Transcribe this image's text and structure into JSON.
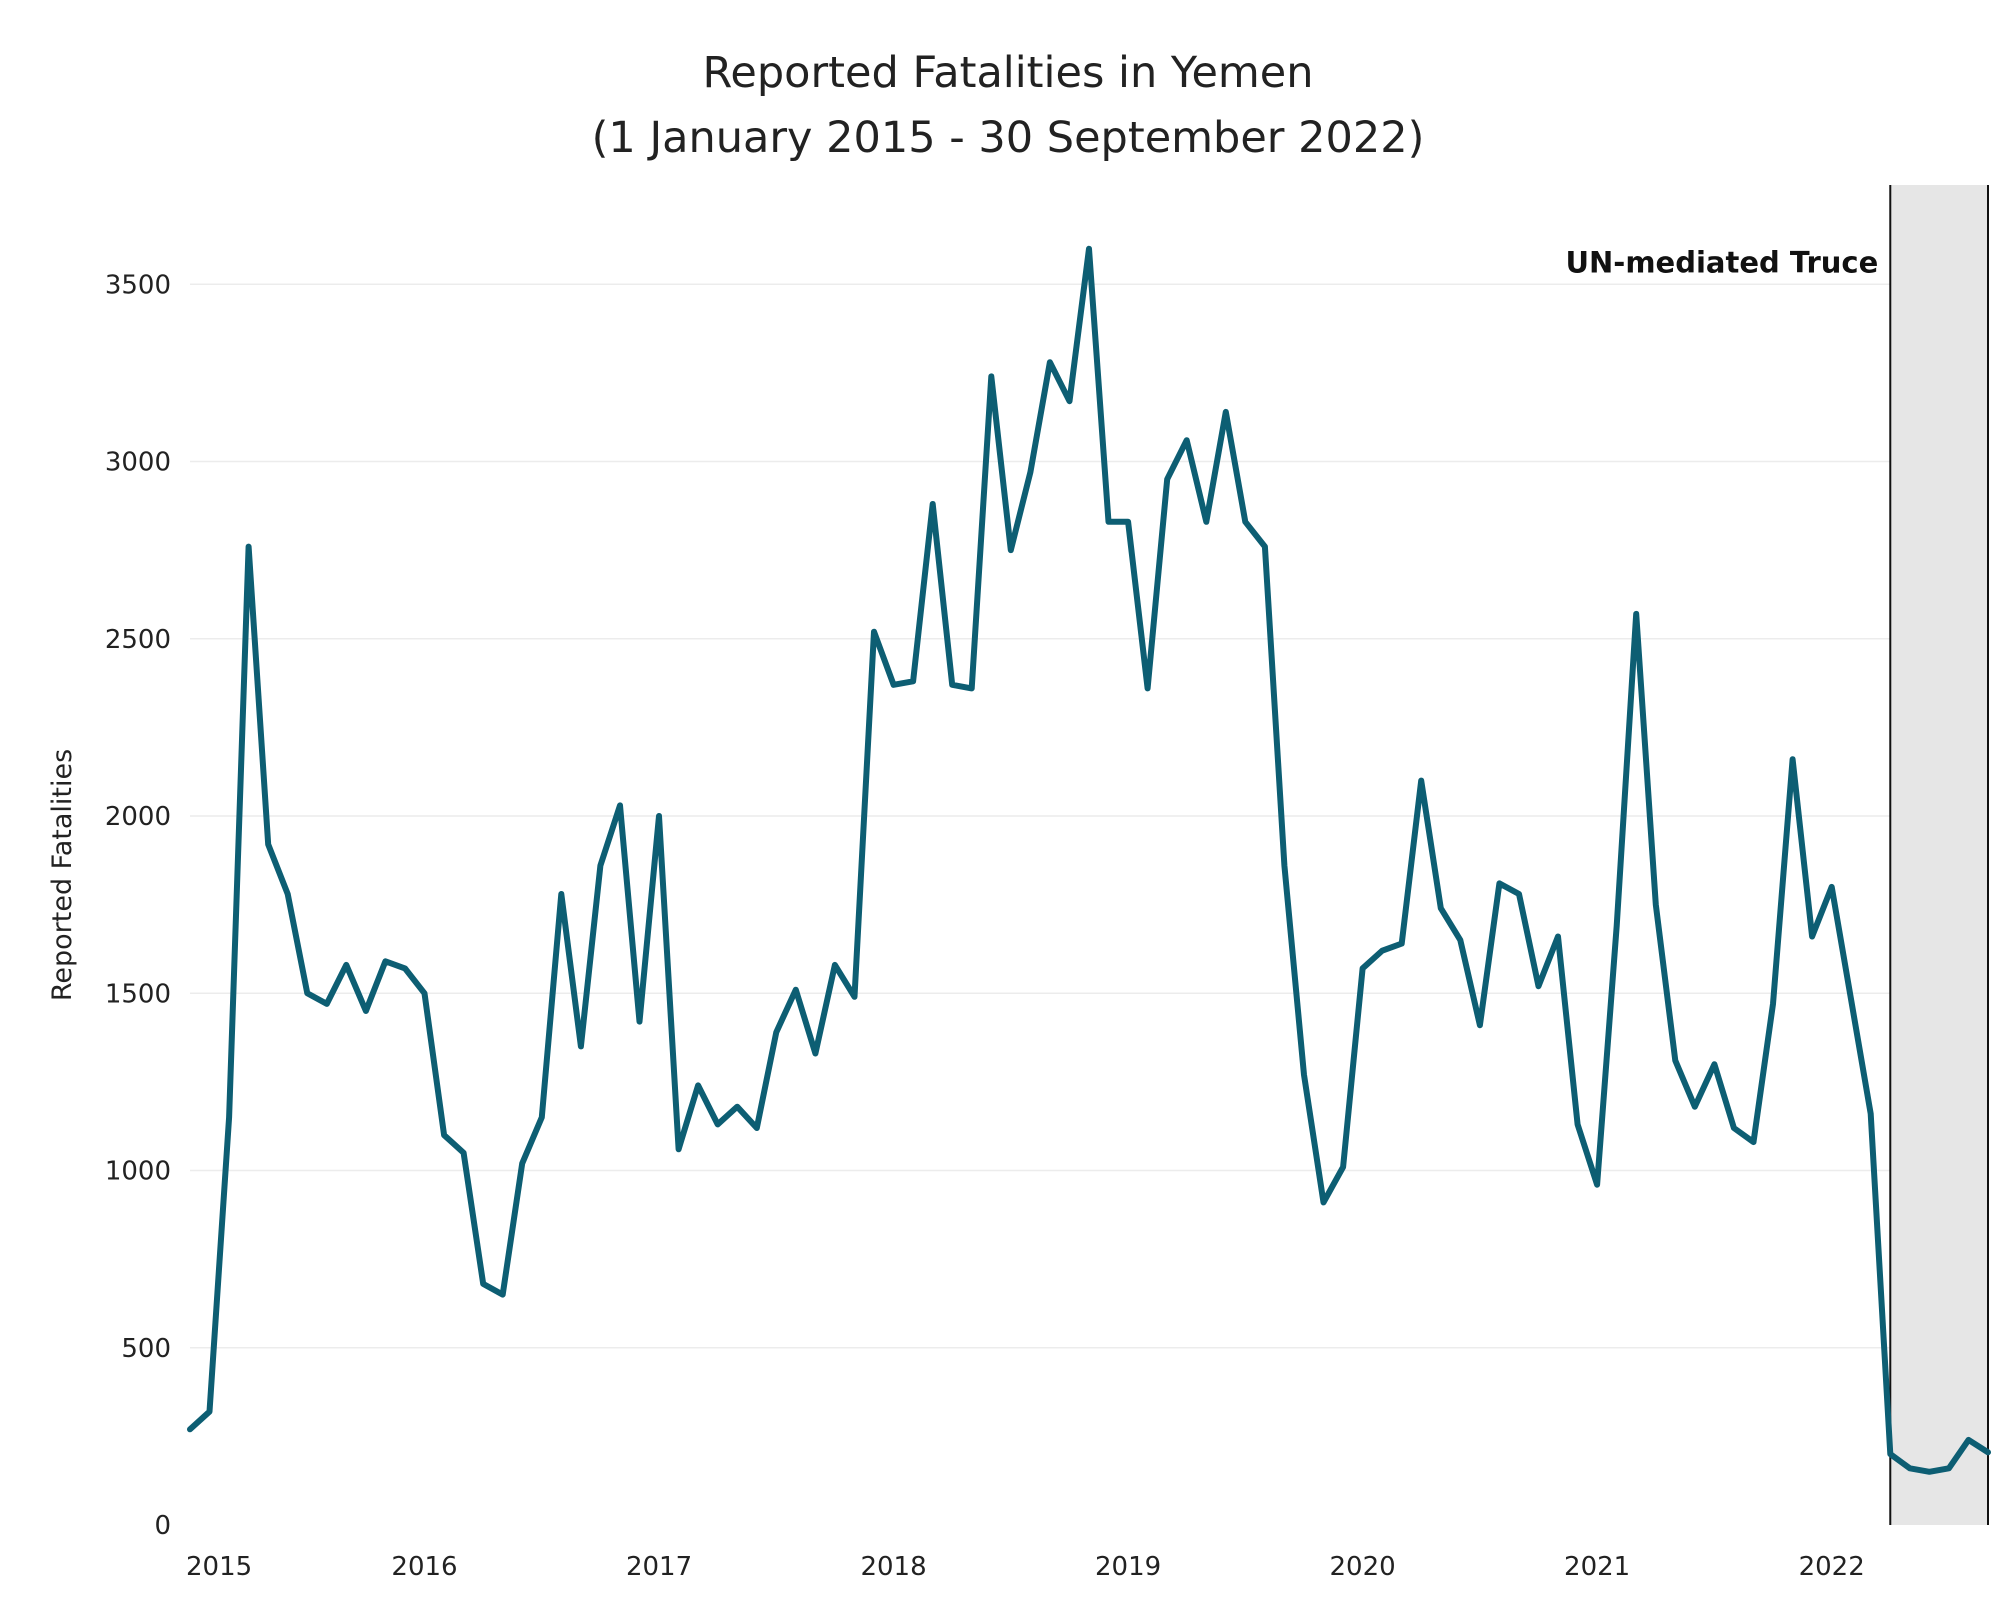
{
  "chart_data": {
    "type": "line",
    "title": "Reported Fatalities in Yemen",
    "subtitle": "(1 January 2015 - 30 September 2022)",
    "ylabel": "Reported Fatalities",
    "xlabel": "",
    "ylim": [
      0,
      3780
    ],
    "xlim": [
      "2015-01",
      "2022-09"
    ],
    "x_tick_labels": [
      "2015",
      "2016",
      "2017",
      "2018",
      "2019",
      "2020",
      "2021",
      "2022"
    ],
    "y_ticks": [
      0,
      500,
      1000,
      1500,
      2000,
      2500,
      3000,
      3500
    ],
    "grid": "horizontal",
    "line_color": "#0d5e73",
    "shade_color": "#e6e6e6",
    "annotation": {
      "label": "UN-mediated Truce",
      "start": "2022-04",
      "end": "2022-09"
    },
    "series": [
      {
        "values": [
          [
            "2015-01",
            270
          ],
          [
            "2015-02",
            320
          ],
          [
            "2015-03",
            1150
          ],
          [
            "2015-04",
            2760
          ],
          [
            "2015-05",
            1920
          ],
          [
            "2015-06",
            1780
          ],
          [
            "2015-07",
            1500
          ],
          [
            "2015-08",
            1470
          ],
          [
            "2015-09",
            1580
          ],
          [
            "2015-10",
            1450
          ],
          [
            "2015-11",
            1590
          ],
          [
            "2015-12",
            1570
          ],
          [
            "2016-01",
            1500
          ],
          [
            "2016-02",
            1100
          ],
          [
            "2016-03",
            1050
          ],
          [
            "2016-04",
            680
          ],
          [
            "2016-05",
            650
          ],
          [
            "2016-06",
            1020
          ],
          [
            "2016-07",
            1150
          ],
          [
            "2016-08",
            1780
          ],
          [
            "2016-09",
            1350
          ],
          [
            "2016-10",
            1860
          ],
          [
            "2016-11",
            2030
          ],
          [
            "2016-12",
            1420
          ],
          [
            "2017-01",
            2000
          ],
          [
            "2017-02",
            1060
          ],
          [
            "2017-03",
            1240
          ],
          [
            "2017-04",
            1130
          ],
          [
            "2017-05",
            1180
          ],
          [
            "2017-06",
            1120
          ],
          [
            "2017-07",
            1390
          ],
          [
            "2017-08",
            1510
          ],
          [
            "2017-09",
            1330
          ],
          [
            "2017-10",
            1580
          ],
          [
            "2017-11",
            1490
          ],
          [
            "2017-12",
            2520
          ],
          [
            "2018-01",
            2370
          ],
          [
            "2018-02",
            2380
          ],
          [
            "2018-03",
            2880
          ],
          [
            "2018-04",
            2370
          ],
          [
            "2018-05",
            2360
          ],
          [
            "2018-06",
            3240
          ],
          [
            "2018-07",
            2750
          ],
          [
            "2018-08",
            2970
          ],
          [
            "2018-09",
            3280
          ],
          [
            "2018-10",
            3170
          ],
          [
            "2018-11",
            3600
          ],
          [
            "2018-12",
            2830
          ],
          [
            "2019-01",
            2830
          ],
          [
            "2019-02",
            2360
          ],
          [
            "2019-03",
            2950
          ],
          [
            "2019-04",
            3060
          ],
          [
            "2019-05",
            2830
          ],
          [
            "2019-06",
            3140
          ],
          [
            "2019-07",
            2830
          ],
          [
            "2019-08",
            2760
          ],
          [
            "2019-09",
            1860
          ],
          [
            "2019-10",
            1270
          ],
          [
            "2019-11",
            910
          ],
          [
            "2019-12",
            1010
          ],
          [
            "2020-01",
            1570
          ],
          [
            "2020-02",
            1620
          ],
          [
            "2020-03",
            1640
          ],
          [
            "2020-04",
            2100
          ],
          [
            "2020-05",
            1740
          ],
          [
            "2020-06",
            1650
          ],
          [
            "2020-07",
            1410
          ],
          [
            "2020-08",
            1810
          ],
          [
            "2020-09",
            1780
          ],
          [
            "2020-10",
            1520
          ],
          [
            "2020-11",
            1660
          ],
          [
            "2020-12",
            1130
          ],
          [
            "2021-01",
            960
          ],
          [
            "2021-02",
            1690
          ],
          [
            "2021-03",
            2570
          ],
          [
            "2021-04",
            1750
          ],
          [
            "2021-05",
            1310
          ],
          [
            "2021-06",
            1180
          ],
          [
            "2021-07",
            1300
          ],
          [
            "2021-08",
            1120
          ],
          [
            "2021-09",
            1080
          ],
          [
            "2021-10",
            1470
          ],
          [
            "2021-11",
            2160
          ],
          [
            "2021-12",
            1660
          ],
          [
            "2022-01",
            1800
          ],
          [
            "2022-02",
            1480
          ],
          [
            "2022-03",
            1160
          ],
          [
            "2022-04",
            200
          ],
          [
            "2022-05",
            160
          ],
          [
            "2022-06",
            150
          ],
          [
            "2022-07",
            160
          ],
          [
            "2022-08",
            240
          ],
          [
            "2022-09",
            205
          ]
        ]
      }
    ]
  }
}
